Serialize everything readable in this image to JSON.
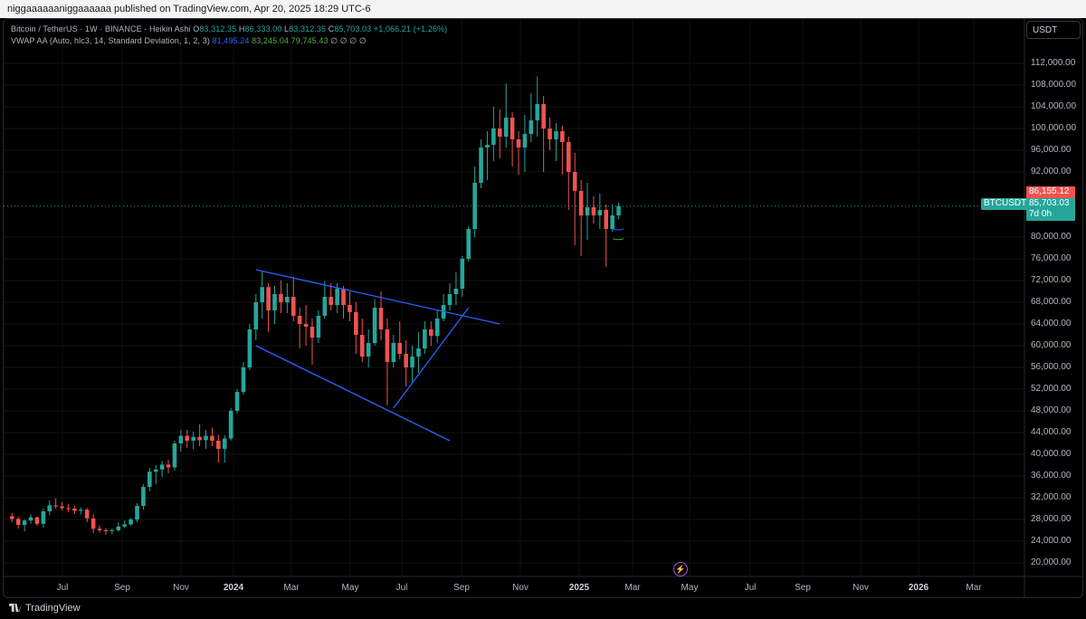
{
  "topbar": {
    "text": "niggaaaaaaniggaaaaaa published on TradingView.com, Apr 20, 2025 18:29 UTC-6"
  },
  "legend": {
    "symbol_line": "Bitcoin / TetherUS · 1W · BINANCE · Heikin Ashi",
    "o_label": "O",
    "o_value": "83,312.35",
    "h_label": "H",
    "h_value": "86,333.00",
    "l_label": "L",
    "l_value": "83,312.35",
    "c_label": "C",
    "c_value": "85,703.03",
    "change": "+1,066.21 (+1.26%)",
    "vwap_label": "VWAP AA (Auto, hlc3, 14, Standard Deviation, 1, 2, 3)",
    "vwap_v1": "81,495.24",
    "vwap_v2": "83,245.04",
    "vwap_v3": "79,745.43",
    "vwap_na": "∅ ∅ ∅ ∅"
  },
  "currency_button": "USDT",
  "price_axis": [
    "112,000.00",
    "108,000.00",
    "104,000.00",
    "100,000.00",
    "96,000.00",
    "92,000.00",
    "80,000.00",
    "76,000.00",
    "72,000.00",
    "68,000.00",
    "64,000.00",
    "60,000.00",
    "56,000.00",
    "52,000.00",
    "48,000.00",
    "44,000.00",
    "40,000.00",
    "36,000.00",
    "32,000.00",
    "28,000.00",
    "24,000.00",
    "20,000.00"
  ],
  "time_axis": [
    {
      "label": "Jul",
      "bold": false
    },
    {
      "label": "Sep",
      "bold": false
    },
    {
      "label": "Nov",
      "bold": false
    },
    {
      "label": "2024",
      "bold": true
    },
    {
      "label": "Mar",
      "bold": false
    },
    {
      "label": "May",
      "bold": false
    },
    {
      "label": "Jul",
      "bold": false
    },
    {
      "label": "Sep",
      "bold": false
    },
    {
      "label": "Nov",
      "bold": false
    },
    {
      "label": "2025",
      "bold": true
    },
    {
      "label": "Mar",
      "bold": false
    },
    {
      "label": "May",
      "bold": false
    },
    {
      "label": "Jul",
      "bold": false
    },
    {
      "label": "Sep",
      "bold": false
    },
    {
      "label": "Nov",
      "bold": false
    },
    {
      "label": "2026",
      "bold": true
    },
    {
      "label": "Mar",
      "bold": false
    }
  ],
  "price_tags": {
    "symbol": "BTCUSDT",
    "high_price": "86,155.12",
    "last_price": "85,703.03",
    "countdown": "7d 0h"
  },
  "brand": "TradingView",
  "colors": {
    "up": "#26a69a",
    "down": "#ef5350",
    "trendline": "#2962ff",
    "background": "#000000"
  },
  "chart_data": {
    "type": "candlestick",
    "style": "Heikin Ashi",
    "interval": "1W",
    "y_range": [
      16000,
      116000
    ],
    "trendlines": [
      {
        "from": [
          "2024-03-04",
          74000
        ],
        "to": [
          "2024-12-02",
          64000
        ]
      },
      {
        "from": [
          "2024-03-04",
          60000
        ],
        "to": [
          "2024-10-07",
          42500
        ]
      },
      {
        "from": [
          "2024-08-05",
          48500
        ],
        "to": [
          "2024-10-28",
          67000
        ]
      }
    ],
    "weekly_candles_from": "2023-06-05",
    "candles": [
      [
        28.6,
        29.2,
        27.5,
        28.1
      ],
      [
        28.1,
        28.5,
        26.3,
        27.0
      ],
      [
        27.0,
        28.0,
        25.8,
        27.8
      ],
      [
        27.8,
        29.0,
        27.2,
        28.4
      ],
      [
        28.4,
        28.5,
        26.8,
        27.2
      ],
      [
        27.2,
        30.0,
        26.5,
        29.5
      ],
      [
        29.5,
        31.5,
        28.8,
        30.6
      ],
      [
        30.6,
        31.9,
        30.0,
        30.4
      ],
      [
        30.4,
        31.2,
        29.7,
        30.1
      ],
      [
        30.1,
        30.8,
        29.4,
        30.0
      ],
      [
        30.0,
        30.5,
        29.0,
        29.6
      ],
      [
        29.6,
        30.2,
        28.9,
        29.8
      ],
      [
        29.8,
        30.1,
        27.5,
        28.2
      ],
      [
        28.2,
        29.0,
        25.5,
        26.3
      ],
      [
        26.3,
        26.9,
        25.6,
        26.0
      ],
      [
        26.0,
        26.4,
        25.2,
        25.9
      ],
      [
        25.9,
        26.3,
        25.3,
        26.0
      ],
      [
        26.0,
        27.5,
        25.8,
        26.7
      ],
      [
        26.7,
        27.8,
        26.4,
        27.1
      ],
      [
        27.1,
        28.3,
        26.8,
        28.0
      ],
      [
        28.0,
        31.0,
        27.5,
        30.5
      ],
      [
        30.5,
        34.5,
        29.8,
        34.0
      ],
      [
        34.0,
        37.5,
        33.2,
        36.8
      ],
      [
        36.8,
        38.0,
        34.5,
        37.2
      ],
      [
        37.2,
        38.8,
        35.8,
        38.1
      ],
      [
        38.1,
        39.0,
        36.5,
        37.6
      ],
      [
        37.6,
        42.5,
        37.0,
        42.0
      ],
      [
        42.0,
        44.5,
        40.5,
        43.4
      ],
      [
        43.4,
        44.5,
        41.2,
        42.5
      ],
      [
        42.5,
        44.2,
        40.9,
        43.2
      ],
      [
        43.2,
        45.5,
        41.5,
        42.6
      ],
      [
        42.6,
        44.5,
        41.0,
        43.4
      ],
      [
        43.4,
        44.9,
        41.5,
        42.5
      ],
      [
        42.5,
        43.6,
        38.5,
        41.0
      ],
      [
        41.0,
        43.5,
        38.5,
        42.9
      ],
      [
        42.9,
        48.5,
        42.5,
        48.0
      ],
      [
        48.0,
        52.0,
        47.5,
        51.5
      ],
      [
        51.5,
        57.0,
        51.0,
        56.0
      ],
      [
        56.0,
        64.0,
        55.5,
        63.0
      ],
      [
        63.0,
        69.5,
        61.0,
        68.0
      ],
      [
        68.0,
        73.8,
        65.0,
        70.8
      ],
      [
        70.8,
        71.5,
        62.5,
        66.5
      ],
      [
        66.5,
        71.0,
        64.0,
        69.5
      ],
      [
        69.5,
        72.0,
        66.0,
        68.0
      ],
      [
        68.0,
        71.5,
        66.0,
        69.0
      ],
      [
        69.0,
        72.7,
        64.5,
        65.5
      ],
      [
        65.5,
        67.0,
        59.5,
        64.0
      ],
      [
        64.0,
        67.5,
        60.0,
        63.5
      ],
      [
        63.5,
        65.0,
        56.5,
        61.5
      ],
      [
        61.5,
        66.5,
        60.5,
        65.5
      ],
      [
        65.5,
        71.9,
        65.0,
        69.0
      ],
      [
        69.0,
        71.5,
        66.5,
        67.5
      ],
      [
        67.5,
        71.5,
        66.0,
        70.5
      ],
      [
        70.5,
        71.0,
        65.0,
        67.5
      ],
      [
        67.5,
        70.0,
        64.5,
        66.2
      ],
      [
        66.2,
        68.0,
        58.5,
        62.0
      ],
      [
        62.0,
        65.0,
        57.0,
        58.0
      ],
      [
        58.0,
        63.0,
        56.0,
        60.5
      ],
      [
        60.5,
        68.5,
        60.0,
        67.0
      ],
      [
        67.0,
        70.0,
        61.0,
        63.0
      ],
      [
        63.0,
        65.0,
        49.0,
        57.0
      ],
      [
        57.0,
        62.0,
        56.0,
        60.5
      ],
      [
        60.5,
        64.5,
        57.5,
        58.5
      ],
      [
        58.5,
        61.0,
        52.5,
        56.0
      ],
      [
        56.0,
        60.0,
        53.0,
        58.0
      ],
      [
        58.0,
        62.5,
        55.0,
        59.5
      ],
      [
        59.5,
        64.5,
        58.5,
        63.0
      ],
      [
        63.0,
        64.5,
        60.0,
        61.8
      ],
      [
        61.8,
        66.5,
        60.5,
        65.0
      ],
      [
        65.0,
        69.5,
        64.5,
        67.5
      ],
      [
        67.5,
        71.5,
        66.5,
        69.5
      ],
      [
        69.5,
        73.5,
        67.5,
        70.5
      ],
      [
        70.5,
        76.5,
        69.0,
        76.0
      ],
      [
        76.0,
        82.0,
        75.5,
        81.5
      ],
      [
        81.5,
        93.0,
        80.0,
        90.0
      ],
      [
        90.0,
        98.0,
        89.0,
        96.5
      ],
      [
        96.5,
        99.5,
        90.5,
        97.0
      ],
      [
        97.0,
        104.0,
        94.0,
        100.0
      ],
      [
        100.0,
        103.5,
        94.5,
        98.5
      ],
      [
        98.5,
        108.3,
        96.5,
        102.0
      ],
      [
        102.0,
        103.0,
        93.0,
        98.0
      ],
      [
        98.0,
        99.5,
        91.5,
        96.5
      ],
      [
        96.5,
        102.5,
        92.0,
        99.0
      ],
      [
        99.0,
        106.5,
        97.5,
        101.5
      ],
      [
        101.5,
        109.6,
        98.5,
        104.5
      ],
      [
        104.5,
        106.0,
        92.0,
        100.0
      ],
      [
        100.0,
        102.0,
        96.0,
        98.0
      ],
      [
        98.0,
        101.0,
        94.0,
        99.5
      ],
      [
        99.5,
        100.5,
        91.5,
        97.5
      ],
      [
        97.5,
        98.5,
        85.0,
        92.0
      ],
      [
        92.0,
        95.5,
        78.5,
        88.5
      ],
      [
        88.5,
        90.5,
        76.5,
        84.0
      ],
      [
        84.0,
        90.0,
        79.5,
        85.5
      ],
      [
        85.5,
        87.5,
        82.5,
        84.0
      ],
      [
        84.0,
        88.0,
        81.5,
        85.0
      ],
      [
        85.0,
        86.0,
        74.5,
        81.5
      ],
      [
        81.5,
        86.0,
        81.0,
        84.0
      ],
      [
        84.0,
        86.3,
        83.3,
        85.7
      ]
    ]
  }
}
